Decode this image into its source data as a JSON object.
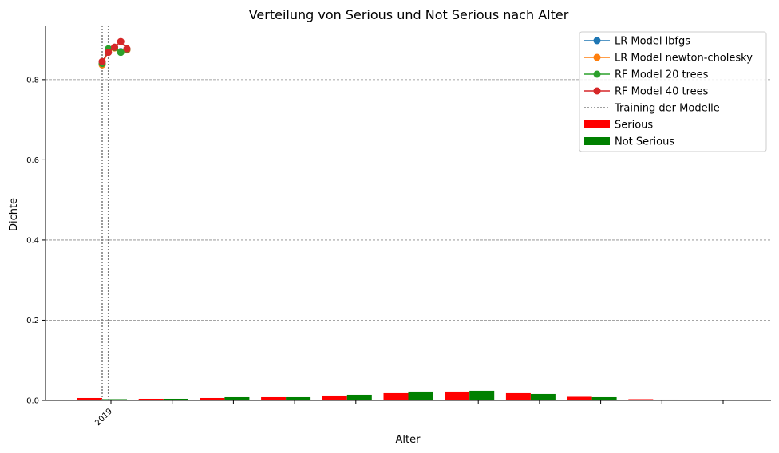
{
  "chart_data": {
    "type": "bar",
    "title": "Verteilung von Serious und Not Serious nach Alter",
    "xlabel": "Alter",
    "ylabel": "Dichte",
    "ylim": [
      0,
      0.935
    ],
    "yticks": [
      0.0,
      0.2,
      0.4,
      0.6,
      0.8
    ],
    "ytick_labels": [
      "0.0",
      "0.2",
      "0.4",
      "0.6",
      "0.8"
    ],
    "xtick_labels": [
      "2019",
      "",
      "",
      "",
      "",
      "",
      "",
      "",
      "",
      "",
      ""
    ],
    "grid": "horizontal",
    "legend_position": "top-right",
    "bar_series": [
      {
        "name": "Serious",
        "color": "#ff0000",
        "values": [
          0.006,
          0.004,
          0.006,
          0.008,
          0.012,
          0.018,
          0.022,
          0.018,
          0.009,
          0.003,
          0.0
        ]
      },
      {
        "name": "Not Serious",
        "color": "#008000",
        "values": [
          0.003,
          0.004,
          0.008,
          0.008,
          0.014,
          0.022,
          0.024,
          0.016,
          0.008,
          0.002,
          0.0
        ]
      }
    ],
    "line_series": [
      {
        "name": "LR Model lbfgs",
        "color": "#1f77b4",
        "points": [
          [
            0.0,
            0.84
          ],
          [
            0.1,
            0.875
          ],
          [
            0.2,
            0.88
          ],
          [
            0.3,
            0.87
          ],
          [
            0.4,
            0.875
          ]
        ]
      },
      {
        "name": "LR Model newton-cholesky",
        "color": "#ff7f0e",
        "points": [
          [
            0.0,
            0.837
          ],
          [
            0.1,
            0.872
          ],
          [
            0.2,
            0.879
          ],
          [
            0.3,
            0.869
          ],
          [
            0.4,
            0.874
          ]
        ]
      },
      {
        "name": "RF Model 20 trees",
        "color": "#2ca02c",
        "points": [
          [
            0.0,
            0.84
          ],
          [
            0.1,
            0.877
          ],
          [
            0.2,
            0.88
          ],
          [
            0.3,
            0.868
          ],
          [
            0.4,
            0.876
          ]
        ]
      },
      {
        "name": "RF Model 40 trees",
        "color": "#d62728",
        "points": [
          [
            0.0,
            0.845
          ],
          [
            0.1,
            0.868
          ],
          [
            0.2,
            0.881
          ],
          [
            0.3,
            0.895
          ],
          [
            0.4,
            0.877
          ]
        ]
      }
    ],
    "vlines": {
      "name": "Training der Modelle",
      "color": "#808080",
      "x": [
        0.0,
        0.1
      ]
    }
  }
}
